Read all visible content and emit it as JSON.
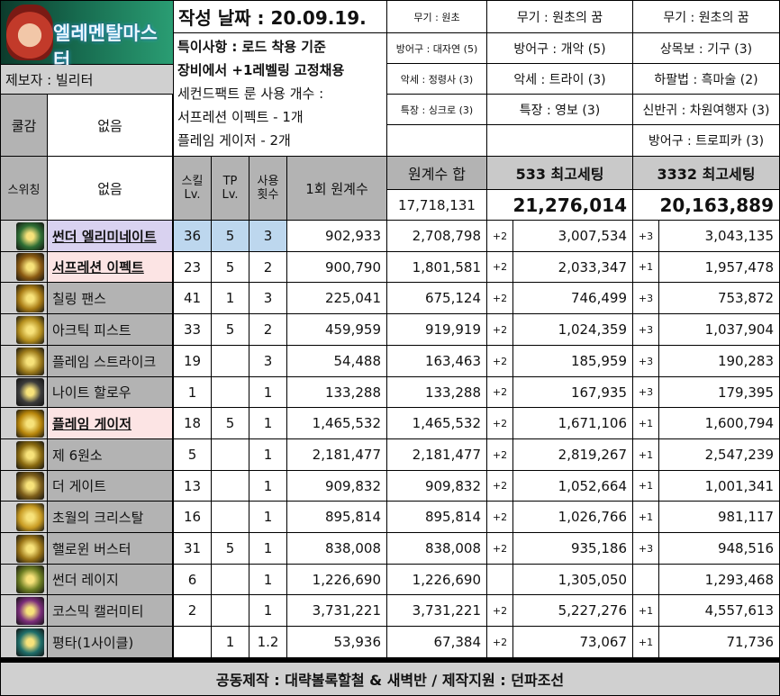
{
  "title": "작성 날짜 : 20.09.19.",
  "logo": {
    "text": "엘레멘탈마스터"
  },
  "notes": [
    "특이사항 : 로드 착용 기준",
    "장비에서 +1레벨링 고정채용",
    "세컨드팩트 룬 사용 개수 :",
    "서프레션 이펙트 - 1개",
    "플레임 게이저 - 2개"
  ],
  "reporter": "제보자 : 빌리터",
  "side": {
    "cool_label": "쿨감",
    "cool_value": "없음",
    "switch_label": "스위칭",
    "switch_value": "없음"
  },
  "equip": {
    "col1": [
      "무기 : 원초",
      "방어구 : 대자연 (5)",
      "악세 : 정령사 (3)",
      "특장 : 싱크로 (3)"
    ],
    "col2": [
      "무기 : 원초의 꿈",
      "방어구 : 개악 (5)",
      "악세 : 트라이 (3)",
      "특장 : 영보 (3)"
    ],
    "col3": [
      "무기 : 원초의 꿈",
      "상목보 : 기구 (3)",
      "하팔법 : 흑마술 (2)",
      "신반귀 : 차원여행자 (3)",
      "방어구 : 트로피카 (3)"
    ]
  },
  "table_header": {
    "skill_lv": "스킬\nLv.",
    "tp_lv": "TP\nLv.",
    "uses": "사용\n횟수",
    "one_coef": "1회 원계수",
    "coef_sum": "원계수 합",
    "coef_sum_value": "17,718,131",
    "set533": "533 최고세팅",
    "set533_total": "21,276,014",
    "set3332": "3332 최고세팅",
    "set3332_total": "20,163,889"
  },
  "rows": [
    {
      "name": "썬더 엘리미네이트",
      "style": "lav",
      "lv": "36",
      "tp": "5",
      "uses": "3",
      "one": "902,933",
      "sum": "2,708,798",
      "p1": "+2",
      "v1": "3,007,534",
      "p2": "+3",
      "v2": "3,043,135",
      "hl": true,
      "icon": "#2f6e34"
    },
    {
      "name": "서프레션 이펙트",
      "style": "pink",
      "lv": "23",
      "tp": "5",
      "uses": "2",
      "one": "900,790",
      "sum": "1,801,581",
      "p1": "+2",
      "v1": "2,033,347",
      "p2": "+1",
      "v2": "1,957,478",
      "hl": false,
      "icon": "#8a5a12"
    },
    {
      "name": "칠링 팬스",
      "style": "g",
      "lv": "41",
      "tp": "1",
      "uses": "3",
      "one": "225,041",
      "sum": "675,124",
      "p1": "+2",
      "v1": "746,499",
      "p2": "+3",
      "v2": "753,872",
      "hl": false,
      "icon": "#a87b14"
    },
    {
      "name": "아크틱 피스트",
      "style": "g",
      "lv": "33",
      "tp": "5",
      "uses": "2",
      "one": "459,959",
      "sum": "919,919",
      "p1": "+2",
      "v1": "1,024,359",
      "p2": "+3",
      "v2": "1,037,904",
      "hl": false,
      "icon": "#b58f1e"
    },
    {
      "name": "플레임 스트라이크",
      "style": "g",
      "lv": "19",
      "tp": "",
      "uses": "3",
      "one": "54,488",
      "sum": "163,463",
      "p1": "+2",
      "v1": "185,959",
      "p2": "+3",
      "v2": "190,283",
      "hl": false,
      "icon": "#9c7a1a"
    },
    {
      "name": "나이트 할로우",
      "style": "g",
      "lv": "1",
      "tp": "",
      "uses": "1",
      "one": "133,288",
      "sum": "133,288",
      "p1": "+2",
      "v1": "167,935",
      "p2": "+3",
      "v2": "179,395",
      "hl": false,
      "icon": "#3b3b3b"
    },
    {
      "name": "플레임 게이저",
      "style": "pink",
      "lv": "18",
      "tp": "5",
      "uses": "1",
      "one": "1,465,532",
      "sum": "1,465,532",
      "p1": "+2",
      "v1": "1,671,106",
      "p2": "+1",
      "v2": "1,600,794",
      "hl": false,
      "icon": "#b8860b"
    },
    {
      "name": "제 6원소",
      "style": "g",
      "lv": "5",
      "tp": "",
      "uses": "1",
      "one": "2,181,477",
      "sum": "2,181,477",
      "p1": "+2",
      "v1": "2,819,267",
      "p2": "+1",
      "v2": "2,547,239",
      "hl": false,
      "icon": "#8a6a10"
    },
    {
      "name": "더 게이트",
      "style": "g",
      "lv": "13",
      "tp": "",
      "uses": "1",
      "one": "909,832",
      "sum": "909,832",
      "p1": "+2",
      "v1": "1,052,664",
      "p2": "+1",
      "v2": "1,001,341",
      "hl": false,
      "icon": "#7d5e1a"
    },
    {
      "name": "초월의 크리스탈",
      "style": "g",
      "lv": "16",
      "tp": "",
      "uses": "1",
      "one": "895,814",
      "sum": "895,814",
      "p1": "+2",
      "v1": "1,026,766",
      "p2": "+1",
      "v2": "981,117",
      "hl": false,
      "icon": "#c79a22"
    },
    {
      "name": "핼로윈 버스터",
      "style": "g",
      "lv": "31",
      "tp": "5",
      "uses": "1",
      "one": "838,008",
      "sum": "838,008",
      "p1": "+2",
      "v1": "935,186",
      "p2": "+3",
      "v2": "948,516",
      "hl": false,
      "icon": "#9a7416"
    },
    {
      "name": "썬더 레이지",
      "style": "g",
      "lv": "6",
      "tp": "",
      "uses": "1",
      "one": "1,226,690",
      "sum": "1,226,690",
      "p1": "",
      "v1": "1,305,050",
      "p2": "",
      "v2": "1,293,468",
      "hl": false,
      "icon": "#6b7d22"
    },
    {
      "name": "코스믹 캘러미티",
      "style": "g",
      "lv": "2",
      "tp": "",
      "uses": "1",
      "one": "3,731,221",
      "sum": "3,731,221",
      "p1": "+2",
      "v1": "5,227,276",
      "p2": "+1",
      "v2": "4,557,613",
      "hl": false,
      "icon": "#7a2d7a"
    },
    {
      "name": "평타(1사이클)",
      "style": "g",
      "lv": "",
      "tp": "1",
      "uses": "1.2",
      "one": "53,936",
      "sum": "67,384",
      "p1": "+2",
      "v1": "73,067",
      "p2": "+1",
      "v2": "71,736",
      "hl": false,
      "icon": "#1f6e6a"
    }
  ],
  "footer": "공동제작 : 대략볼록할철 & 새벽반 / 제작지원 : 던파조선"
}
